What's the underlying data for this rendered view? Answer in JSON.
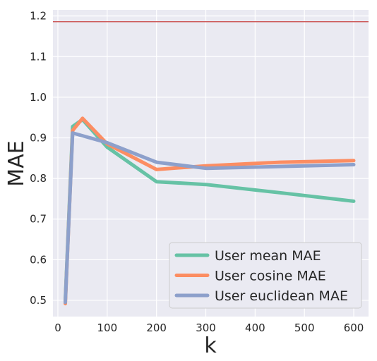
{
  "chart_data": {
    "type": "line",
    "title": "",
    "xlabel": "k",
    "ylabel": "MAE",
    "xlim": [
      -10,
      630
    ],
    "ylim": [
      0.46,
      1.215
    ],
    "xticks": [
      0,
      100,
      200,
      300,
      400,
      500,
      600
    ],
    "yticks": [
      0.5,
      0.6,
      0.7,
      0.8,
      0.9,
      1.0,
      1.1,
      1.2
    ],
    "xtick_labels": [
      "0",
      "100",
      "200",
      "300",
      "400",
      "500",
      "600"
    ],
    "ytick_labels": [
      "0.5",
      "0.6",
      "0.7",
      "0.8",
      "0.9",
      "1.0",
      "1.1",
      "1.2"
    ],
    "grid": true,
    "legend_position": "lower-right",
    "reference_line": {
      "y": 1.186,
      "color": "#cd5c5c"
    },
    "series": [
      {
        "name": "User mean MAE",
        "color": "#66c2a5",
        "points": [
          [
            15,
            0.5
          ],
          [
            30,
            0.928
          ],
          [
            50,
            0.945
          ],
          [
            100,
            0.877
          ],
          [
            200,
            0.792
          ],
          [
            300,
            0.785
          ],
          [
            450,
            0.765
          ],
          [
            600,
            0.744
          ]
        ]
      },
      {
        "name": "User cosine MAE",
        "color": "#fc8d62",
        "points": [
          [
            15,
            0.492
          ],
          [
            30,
            0.918
          ],
          [
            50,
            0.948
          ],
          [
            100,
            0.885
          ],
          [
            200,
            0.822
          ],
          [
            300,
            0.831
          ],
          [
            450,
            0.84
          ],
          [
            600,
            0.844
          ]
        ]
      },
      {
        "name": "User euclidean MAE",
        "color": "#8da0cb",
        "points": [
          [
            15,
            0.495
          ],
          [
            30,
            0.912
          ],
          [
            100,
            0.888
          ],
          [
            200,
            0.84
          ],
          [
            300,
            0.825
          ],
          [
            600,
            0.834
          ]
        ]
      }
    ]
  }
}
